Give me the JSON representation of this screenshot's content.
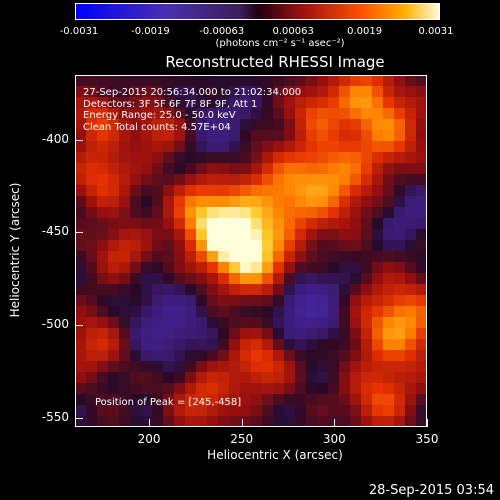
{
  "chart_data": {
    "type": "heatmap",
    "title": "Reconstructed RHESSI Image",
    "xlabel": "Heliocentric X (arcsec)",
    "ylabel": "Heliocentric Y (arcsec)",
    "xlim": [
      160,
      350
    ],
    "ylim": [
      -555,
      -365
    ],
    "x_ticks": [
      "200",
      "250",
      "300",
      "350"
    ],
    "y_ticks": [
      "-400",
      "-450",
      "-500",
      "-550"
    ],
    "colorbar": {
      "ticks": [
        "-0.0031",
        "-0.0019",
        "-0.00063",
        "0.00063",
        "0.0019",
        "0.0031"
      ],
      "units": "(photons cm⁻² s⁻¹ asec⁻²)",
      "range": [
        -0.0031,
        0.0031
      ]
    },
    "info_lines": [
      "27-Sep-2015 20:56:34.000 to 21:02:34.000",
      "Detectors: 3F 5F 6F 7F 8F 9F, Att 1",
      "Energy Range: 25.0 - 50.0 keV",
      "Clean    Total counts: 4.57E+04"
    ],
    "peak_label": "Position of Peak = [245,-458]",
    "peak": [
      245,
      -458
    ],
    "sources": [
      {
        "x": 245,
        "y": -455,
        "amp": 1.0,
        "sigma": 14
      },
      {
        "x": 228,
        "y": -438,
        "amp": 0.55,
        "sigma": 12
      },
      {
        "x": 262,
        "y": -470,
        "amp": 0.45,
        "sigma": 12
      },
      {
        "x": 270,
        "y": -432,
        "amp": 0.55,
        "sigma": 18
      },
      {
        "x": 300,
        "y": -420,
        "amp": 0.55,
        "sigma": 16
      },
      {
        "x": 330,
        "y": -395,
        "amp": 0.5,
        "sigma": 14
      },
      {
        "x": 315,
        "y": -375,
        "amp": 0.5,
        "sigma": 12
      },
      {
        "x": 335,
        "y": -500,
        "amp": 0.7,
        "sigma": 16
      },
      {
        "x": 325,
        "y": -540,
        "amp": 0.45,
        "sigma": 12
      },
      {
        "x": 175,
        "y": -420,
        "amp": 0.45,
        "sigma": 12
      },
      {
        "x": 172,
        "y": -390,
        "amp": 0.4,
        "sigma": 10
      },
      {
        "x": 185,
        "y": -460,
        "amp": 0.35,
        "sigma": 10
      },
      {
        "x": 260,
        "y": -520,
        "amp": 0.45,
        "sigma": 12
      },
      {
        "x": 230,
        "y": -540,
        "amp": 0.4,
        "sigma": 12
      },
      {
        "x": 170,
        "y": -510,
        "amp": 0.35,
        "sigma": 12
      },
      {
        "x": 290,
        "y": -385,
        "amp": 0.4,
        "sigma": 10
      },
      {
        "x": 205,
        "y": -395,
        "amp": 0.35,
        "sigma": 10
      },
      {
        "x": 210,
        "y": -500,
        "amp": -0.3,
        "sigma": 14
      },
      {
        "x": 285,
        "y": -490,
        "amp": -0.4,
        "sigma": 14
      },
      {
        "x": 240,
        "y": -395,
        "amp": -0.2,
        "sigma": 14
      },
      {
        "x": 340,
        "y": -440,
        "amp": -0.2,
        "sigma": 12
      }
    ]
  },
  "timestamp": "28-Sep-2015 03:54"
}
